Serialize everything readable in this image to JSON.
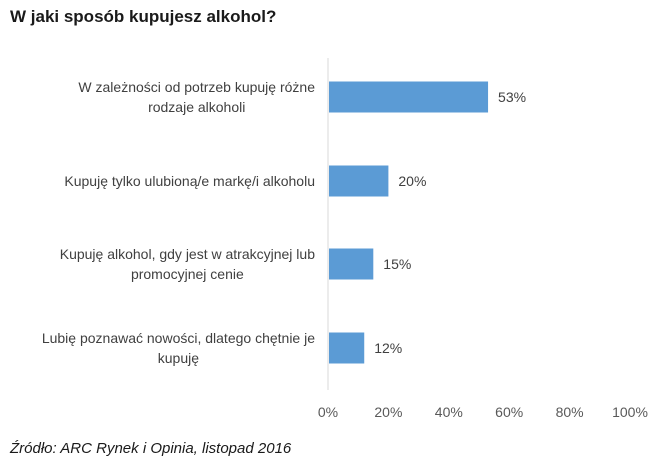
{
  "page": {
    "title": "W jaki sposób kupujesz alkohol?",
    "source": "Źródło: ARC Rynek i Opinia, listopad 2016"
  },
  "chart_data": {
    "type": "bar",
    "orientation": "horizontal",
    "title": "",
    "xlabel": "",
    "ylabel": "",
    "categories": [
      [
        "W zależności od potrzeb kupuję różne",
        "rodzaje alkoholi"
      ],
      [
        "Kupuję tylko ulubioną/e markę/i alkoholu"
      ],
      [
        "Kupuję alkohol, gdy jest w atrakcyjnej lub",
        "promocyjnej cenie"
      ],
      [
        "Lubię poznawać nowości, dlatego chętnie je",
        "kupuję"
      ]
    ],
    "values": [
      53,
      20,
      15,
      12
    ],
    "data_labels": [
      "53%",
      "20%",
      "15%",
      "12%"
    ],
    "xlim": [
      0,
      100
    ],
    "x_ticks": [
      0,
      20,
      40,
      60,
      80,
      100
    ],
    "x_tick_labels": [
      "0%",
      "20%",
      "40%",
      "60%",
      "80%",
      "100%"
    ],
    "grid": false,
    "legend": "none",
    "bar_color": "#5b9bd5",
    "axis_color": "#d9d9d9"
  }
}
